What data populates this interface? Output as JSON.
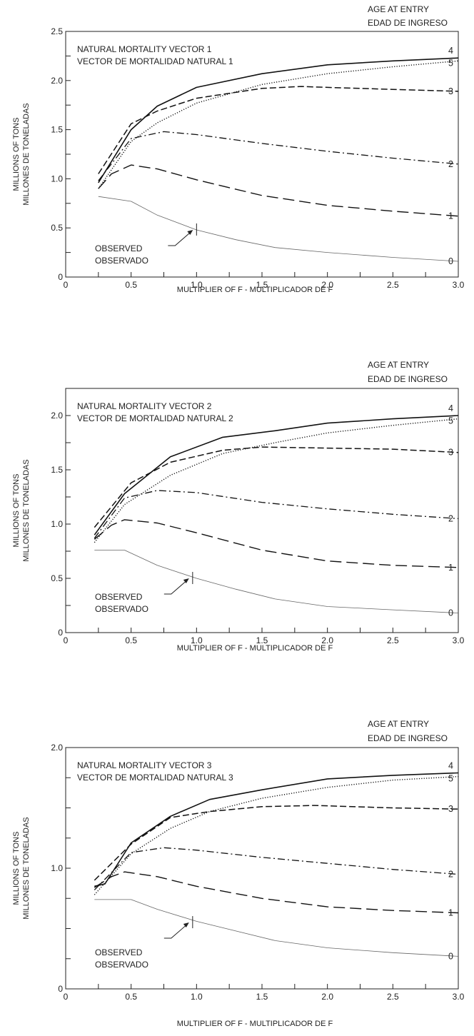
{
  "age_header": [
    "AGE AT ENTRY",
    "EDAD DE INGRESO"
  ],
  "x_title": "MULTIPLIER OF F - MULTIPLICADOR DE F",
  "y_title": [
    "MILLIONS OF TONS",
    "MILLONES DE TONELADAS"
  ],
  "observed_label": [
    "OBSERVED",
    "OBSERVADO"
  ],
  "chart_data": [
    {
      "type": "line",
      "title": [
        "NATURAL MORTALITY VECTOR 1",
        "VECTOR DE MORTALIDAD NATURAL 1"
      ],
      "xlabel": "MULTIPLIER OF F - MULTIPLICADOR DE F",
      "ylabel": "MILLIONS OF TONS / MILLONES DE TONELADAS",
      "xlim": [
        0,
        3.0
      ],
      "ylim": [
        0,
        2.5
      ],
      "xticks": [
        "0",
        "0.5",
        "1.0",
        "1.5",
        "2.0",
        "2.5",
        "3.0"
      ],
      "yticks": [
        "0",
        "0.5",
        "1.0",
        "1.5",
        "2.0",
        "2.5"
      ],
      "observed_marker": [
        1.0,
        0.48
      ],
      "series": [
        {
          "name": "4",
          "style": "solid",
          "x": [
            0.25,
            0.5,
            0.7,
            1.0,
            1.5,
            2.0,
            2.5,
            3.0
          ],
          "y": [
            0.96,
            1.5,
            1.74,
            1.93,
            2.07,
            2.16,
            2.2,
            2.23
          ]
        },
        {
          "name": "5",
          "style": "dotted",
          "x": [
            0.25,
            0.5,
            0.7,
            1.0,
            1.5,
            2.0,
            2.5,
            3.0
          ],
          "y": [
            0.9,
            1.38,
            1.57,
            1.77,
            1.96,
            2.07,
            2.14,
            2.2
          ]
        },
        {
          "name": "3",
          "style": "dashed",
          "x": [
            0.25,
            0.5,
            0.7,
            1.0,
            1.5,
            1.8,
            2.0,
            2.5,
            3.0
          ],
          "y": [
            1.05,
            1.56,
            1.69,
            1.82,
            1.92,
            1.94,
            1.93,
            1.91,
            1.89
          ]
        },
        {
          "name": "2",
          "style": "dashdot",
          "x": [
            0.25,
            0.5,
            0.75,
            1.0,
            1.5,
            2.0,
            2.5,
            3.0
          ],
          "y": [
            0.98,
            1.41,
            1.48,
            1.45,
            1.36,
            1.28,
            1.21,
            1.15
          ]
        },
        {
          "name": "1",
          "style": "longdash",
          "x": [
            0.25,
            0.35,
            0.5,
            0.7,
            1.0,
            1.5,
            2.0,
            2.5,
            3.0
          ],
          "y": [
            0.9,
            1.05,
            1.14,
            1.1,
            0.99,
            0.83,
            0.73,
            0.67,
            0.62
          ]
        },
        {
          "name": "0",
          "style": "thin",
          "x": [
            0.25,
            0.5,
            0.7,
            1.0,
            1.3,
            1.6,
            2.0,
            2.5,
            3.0
          ],
          "y": [
            0.82,
            0.77,
            0.63,
            0.48,
            0.38,
            0.3,
            0.25,
            0.2,
            0.16
          ]
        }
      ]
    },
    {
      "type": "line",
      "title": [
        "NATURAL MORTALITY VECTOR 2",
        "VECTOR DE MORTALIDAD NATURAL 2"
      ],
      "xlabel": "MULTIPLIER OF F - MULTIPLICADOR DE F",
      "ylabel": "MILLIONS OF TONS / MILLONES DE TONELADAS",
      "xlim": [
        0,
        3.0
      ],
      "ylim": [
        0,
        2.25
      ],
      "xticks": [
        "0",
        "0.5",
        "1.0",
        "1.5",
        "2.0",
        "2.5",
        "3.0"
      ],
      "yticks": [
        "0",
        "0.5",
        "1.0",
        "1.5",
        "2.0"
      ],
      "observed_marker": [
        0.97,
        0.5
      ],
      "series": [
        {
          "name": "4",
          "style": "solid",
          "x": [
            0.22,
            0.45,
            0.8,
            1.2,
            1.6,
            2.0,
            2.5,
            3.0
          ],
          "y": [
            0.9,
            1.28,
            1.62,
            1.8,
            1.86,
            1.93,
            1.97,
            2.0
          ]
        },
        {
          "name": "5",
          "style": "dotted",
          "x": [
            0.22,
            0.45,
            0.8,
            1.2,
            1.6,
            2.0,
            2.5,
            3.0
          ],
          "y": [
            0.83,
            1.18,
            1.45,
            1.65,
            1.75,
            1.84,
            1.91,
            1.97
          ]
        },
        {
          "name": "3",
          "style": "dashed",
          "x": [
            0.22,
            0.5,
            0.8,
            1.2,
            1.5,
            2.0,
            2.5,
            3.0
          ],
          "y": [
            0.97,
            1.38,
            1.57,
            1.68,
            1.71,
            1.7,
            1.69,
            1.66
          ]
        },
        {
          "name": "2",
          "style": "dashdot",
          "x": [
            0.22,
            0.45,
            0.7,
            1.0,
            1.5,
            2.0,
            2.5,
            3.0
          ],
          "y": [
            0.87,
            1.24,
            1.31,
            1.29,
            1.2,
            1.14,
            1.09,
            1.05
          ]
        },
        {
          "name": "1",
          "style": "longdash",
          "x": [
            0.22,
            0.35,
            0.45,
            0.7,
            1.0,
            1.5,
            2.0,
            2.5,
            3.0
          ],
          "y": [
            0.86,
            0.99,
            1.04,
            1.01,
            0.92,
            0.76,
            0.66,
            0.62,
            0.6
          ]
        },
        {
          "name": "0",
          "style": "thin",
          "x": [
            0.22,
            0.45,
            0.7,
            1.0,
            1.3,
            1.6,
            2.0,
            2.5,
            3.0
          ],
          "y": [
            0.76,
            0.76,
            0.62,
            0.5,
            0.4,
            0.31,
            0.24,
            0.21,
            0.18
          ]
        }
      ]
    },
    {
      "type": "line",
      "title": [
        "NATURAL MORTALITY VECTOR 3",
        "VECTOR DE MORTALIDAD NATURAL 3"
      ],
      "xlabel": "MULTIPLIER OF F - MULTIPLICADOR DE F",
      "ylabel": "MILLIONS OF TONS / MILLONES DE TONELADAS",
      "xlim": [
        0,
        3.0
      ],
      "ylim": [
        0,
        2.0
      ],
      "xticks": [
        "0",
        "0.5",
        "1.0",
        "1.5",
        "2.0",
        "2.5",
        "3.0"
      ],
      "yticks": [
        "0",
        "1.0",
        "2.0"
      ],
      "observed_marker": [
        0.97,
        0.55
      ],
      "series": [
        {
          "name": "4",
          "style": "solid",
          "x": [
            0.22,
            0.3,
            0.5,
            0.8,
            1.1,
            1.5,
            2.0,
            2.5,
            3.0
          ],
          "y": [
            0.85,
            0.87,
            1.21,
            1.43,
            1.57,
            1.65,
            1.74,
            1.77,
            1.79
          ]
        },
        {
          "name": "5",
          "style": "dotted",
          "x": [
            0.22,
            0.5,
            0.8,
            1.1,
            1.5,
            2.0,
            2.5,
            3.0
          ],
          "y": [
            0.78,
            1.12,
            1.33,
            1.47,
            1.58,
            1.67,
            1.73,
            1.76
          ]
        },
        {
          "name": "3",
          "style": "dashed",
          "x": [
            0.22,
            0.5,
            0.8,
            1.1,
            1.5,
            1.9,
            2.5,
            3.0
          ],
          "y": [
            0.9,
            1.2,
            1.42,
            1.47,
            1.51,
            1.52,
            1.5,
            1.49
          ]
        },
        {
          "name": "2",
          "style": "dashdot",
          "x": [
            0.22,
            0.5,
            0.75,
            1.0,
            1.5,
            2.0,
            2.5,
            3.0
          ],
          "y": [
            0.82,
            1.13,
            1.17,
            1.15,
            1.09,
            1.04,
            0.99,
            0.95
          ]
        },
        {
          "name": "1",
          "style": "longdash",
          "x": [
            0.22,
            0.35,
            0.45,
            0.7,
            1.0,
            1.5,
            2.0,
            2.5,
            3.0
          ],
          "y": [
            0.84,
            0.93,
            0.97,
            0.93,
            0.85,
            0.75,
            0.68,
            0.65,
            0.63
          ]
        },
        {
          "name": "0",
          "style": "thin",
          "x": [
            0.22,
            0.5,
            0.7,
            1.0,
            1.3,
            1.6,
            2.0,
            2.5,
            3.0
          ],
          "y": [
            0.74,
            0.74,
            0.66,
            0.56,
            0.48,
            0.4,
            0.34,
            0.3,
            0.27
          ]
        }
      ]
    }
  ]
}
